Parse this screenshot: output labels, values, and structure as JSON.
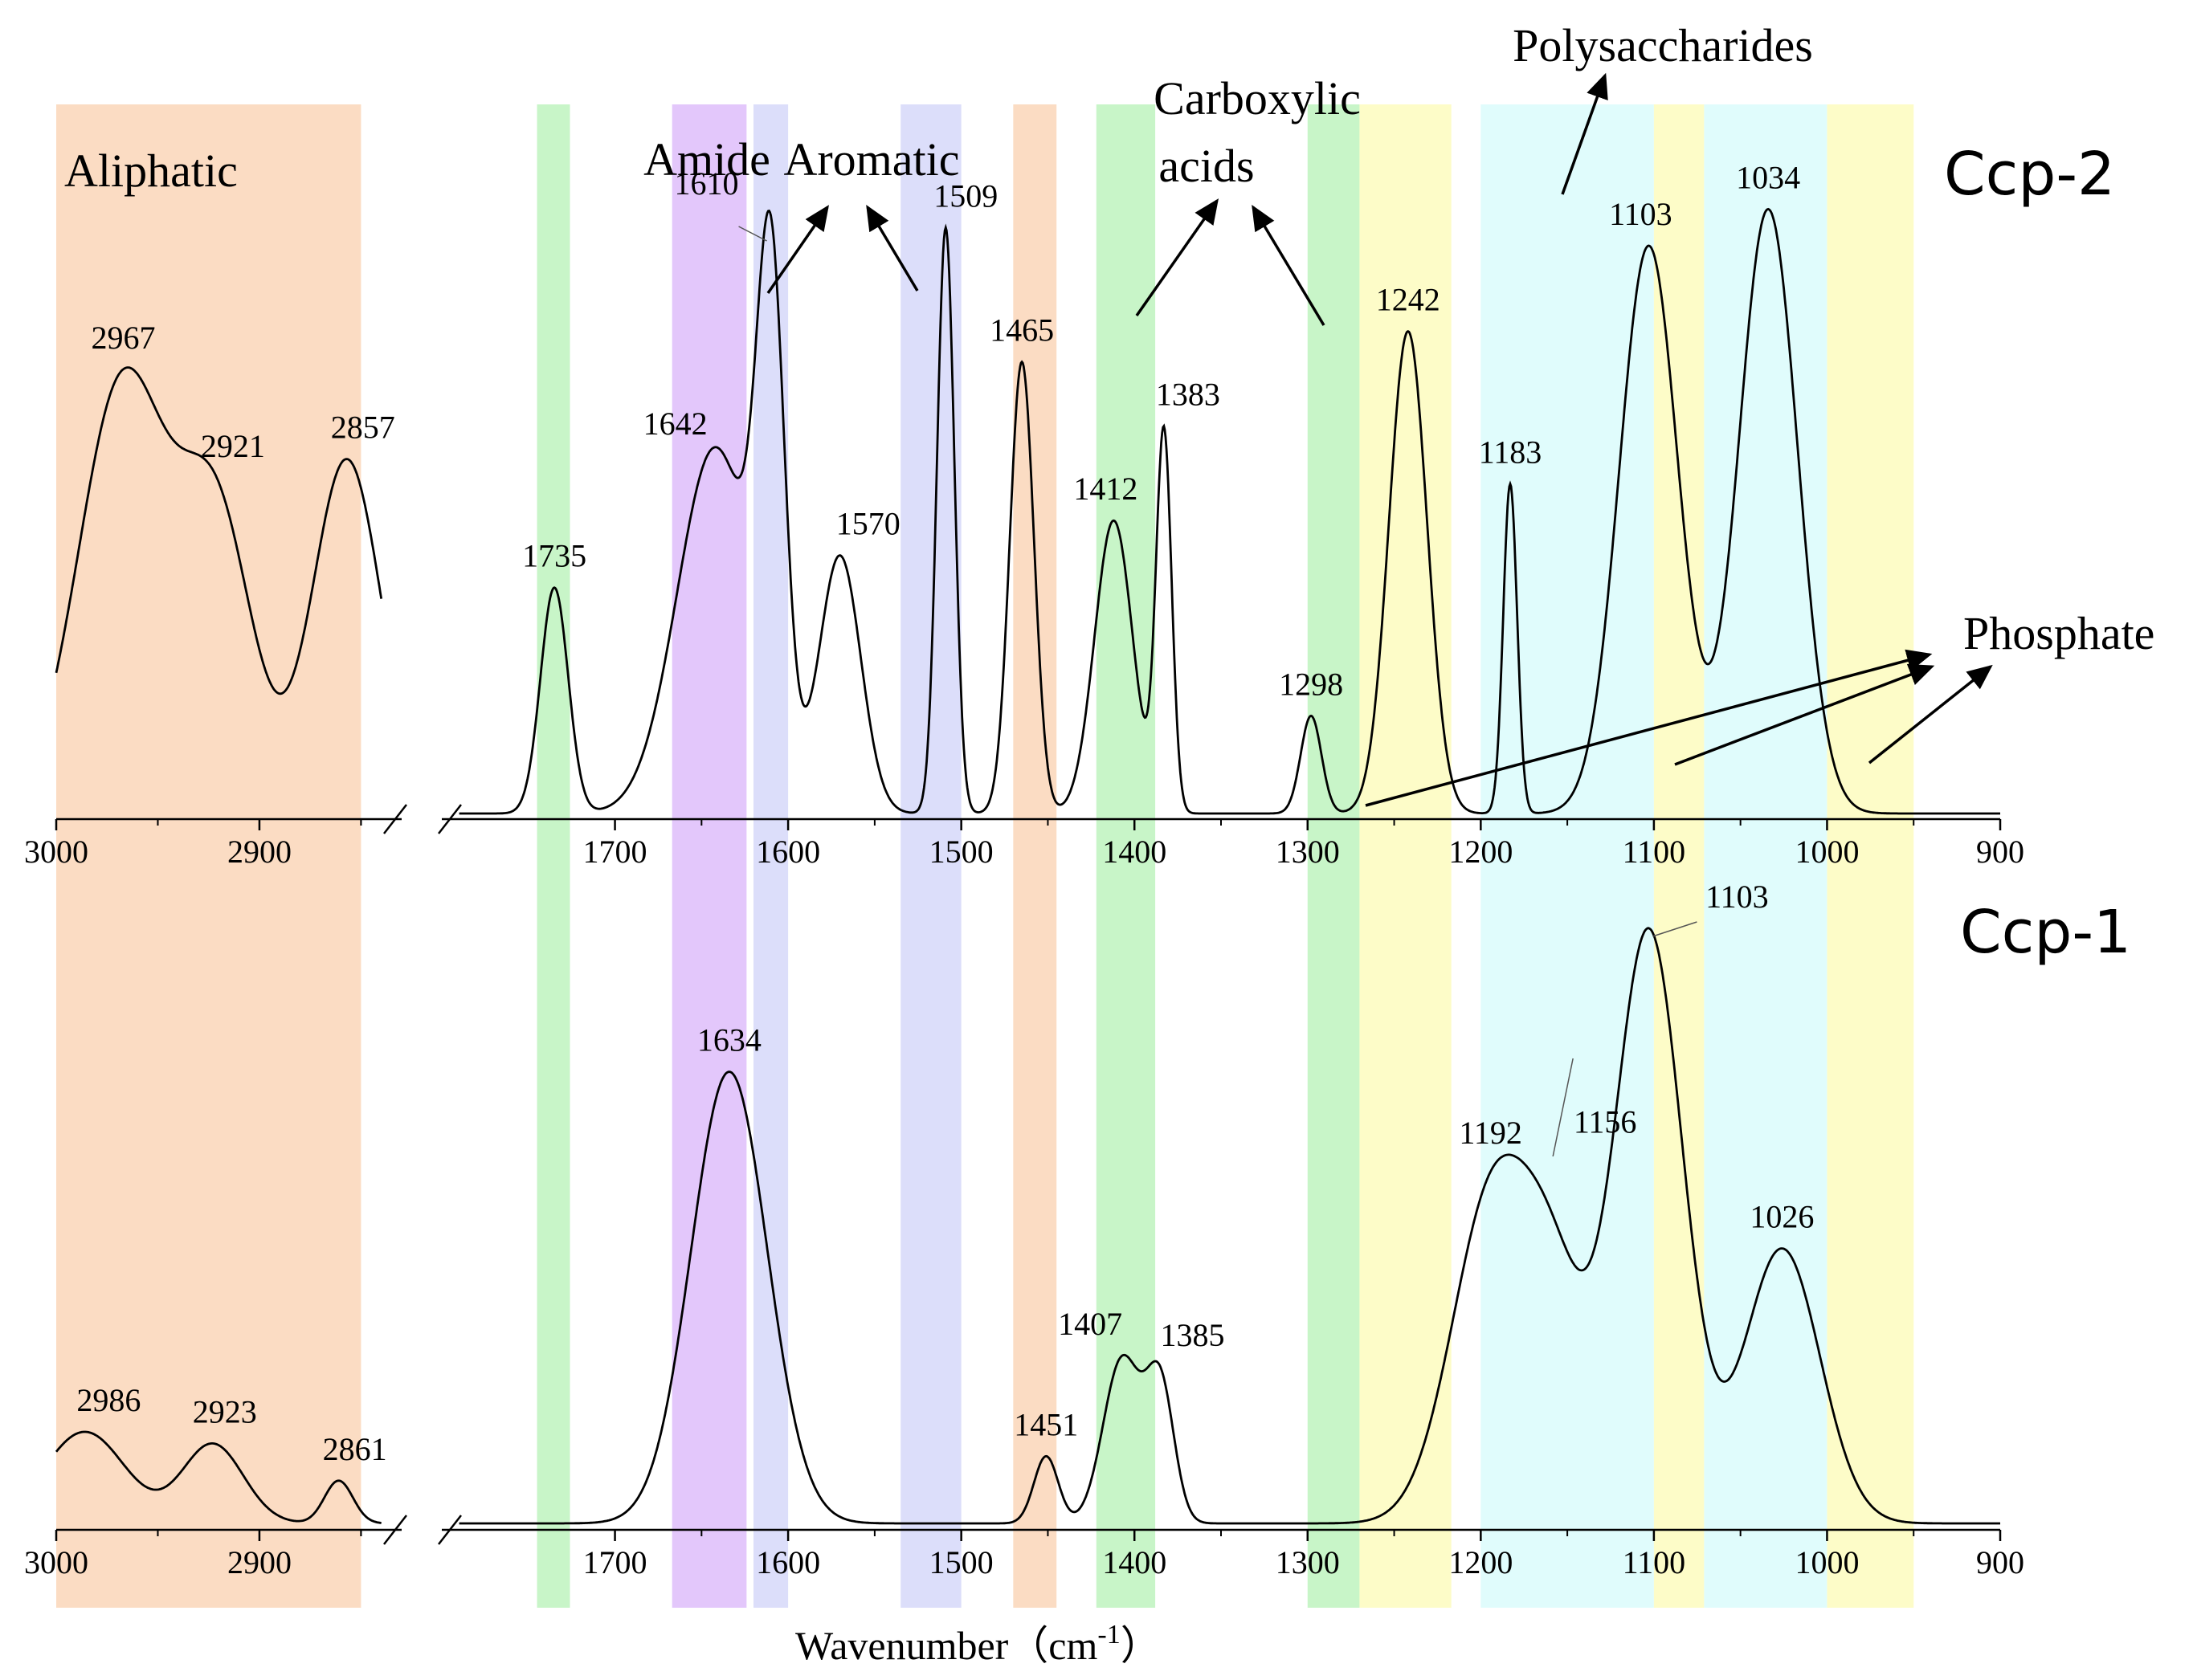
{
  "chart_data": {
    "type": "line",
    "title": "",
    "xlabel": "Wavenumber（cm",
    "xlabel_sup": "-1",
    "xlabel_close": "）",
    "ylabel": "",
    "xlim_left": [
      3000,
      2830
    ],
    "xlim_right": [
      1800,
      900
    ],
    "x_break": [
      2830,
      1800
    ],
    "ticks_left": [
      "3000",
      "2900"
    ],
    "tick_values_left": [
      3000,
      2900
    ],
    "ticks_right": [
      "1700",
      "1600",
      "1500",
      "1400",
      "1300",
      "1200",
      "1100",
      "1000",
      "900"
    ],
    "tick_values_right": [
      1700,
      1600,
      1500,
      1400,
      1300,
      1200,
      1100,
      1000,
      900
    ],
    "bands": [
      {
        "from": 3000,
        "to": 2850,
        "color": "#fbdcc3"
      },
      {
        "from": 1745,
        "to": 1726,
        "color": "#c8f5c8"
      },
      {
        "from": 1667,
        "to": 1624,
        "color": "#e3c7fb"
      },
      {
        "from": 1620,
        "to": 1600,
        "color": "#dcdefa"
      },
      {
        "from": 1535,
        "to": 1500,
        "color": "#dcdefa"
      },
      {
        "from": 1470,
        "to": 1445,
        "color": "#fbdcc3"
      },
      {
        "from": 1422,
        "to": 1388,
        "color": "#c8f5c8"
      },
      {
        "from": 1300,
        "to": 1270,
        "color": "#c8f5c8"
      },
      {
        "from": 1270,
        "to": 1217,
        "color": "#fdfcc8"
      },
      {
        "from": 1200,
        "to": 1100,
        "color": "#e0fcfc"
      },
      {
        "from": 1100,
        "to": 1071,
        "color": "#fdfcc8"
      },
      {
        "from": 1071,
        "to": 1000,
        "color": "#e0fcfc"
      },
      {
        "from": 1000,
        "to": 950,
        "color": "#fdfcc8"
      }
    ],
    "group_labels": [
      {
        "text": "Aliphatic"
      },
      {
        "text": "Amide"
      },
      {
        "text": "Aromatic"
      },
      {
        "text": "Carboxylic"
      },
      {
        "text": "acids"
      },
      {
        "text": "Polysaccharides"
      },
      {
        "text": "Phosphate"
      }
    ],
    "series": [
      {
        "name": "Ccp-2",
        "baseline": 0.05,
        "peaks": [
          {
            "x": 2967,
            "a": 0.71,
            "w": 22,
            "label": "2967"
          },
          {
            "x": 2921,
            "a": 0.47,
            "w": 18,
            "label": "2921"
          },
          {
            "x": 2857,
            "a": 0.58,
            "w": 17,
            "label": "2857"
          },
          {
            "x": 1735,
            "a": 0.37,
            "w": 8,
            "label": "1735"
          },
          {
            "x": 1642,
            "a": 0.6,
            "w": 22,
            "label": "1642"
          },
          {
            "x": 1610,
            "a": 0.77,
            "w": 8,
            "label": "1610"
          },
          {
            "x": 1570,
            "a": 0.42,
            "w": 12,
            "label": "1570"
          },
          {
            "x": 1509,
            "a": 0.96,
            "w": 5,
            "label": "1509"
          },
          {
            "x": 1465,
            "a": 0.74,
            "w": 7,
            "label": "1465"
          },
          {
            "x": 1412,
            "a": 0.48,
            "w": 11,
            "label": "1412"
          },
          {
            "x": 1383,
            "a": 0.62,
            "w": 4.5,
            "label": "1383"
          },
          {
            "x": 1298,
            "a": 0.16,
            "w": 6,
            "label": "1298"
          },
          {
            "x": 1242,
            "a": 0.79,
            "w": 11,
            "label": "1242"
          },
          {
            "x": 1183,
            "a": 0.54,
            "w": 4,
            "label": "1183"
          },
          {
            "x": 1103,
            "a": 0.93,
            "w": 17,
            "label": "1103"
          },
          {
            "x": 1034,
            "a": 0.99,
            "w": 17,
            "label": "1034"
          }
        ]
      },
      {
        "name": "Ccp-1",
        "baseline": 0.0,
        "peaks": [
          {
            "x": 2986,
            "a": 0.15,
            "w": 20,
            "label": "2986"
          },
          {
            "x": 2923,
            "a": 0.13,
            "w": 15,
            "label": "2923"
          },
          {
            "x": 2861,
            "a": 0.07,
            "w": 7,
            "label": "2861"
          },
          {
            "x": 1634,
            "a": 0.74,
            "w": 22,
            "label": "1634"
          },
          {
            "x": 1451,
            "a": 0.11,
            "w": 7,
            "label": "1451"
          },
          {
            "x": 1407,
            "a": 0.27,
            "w": 11,
            "label": "1407"
          },
          {
            "x": 1385,
            "a": 0.22,
            "w": 8,
            "label": "1385"
          },
          {
            "x": 1192,
            "a": 0.55,
            "w": 24,
            "label": "1192"
          },
          {
            "x": 1156,
            "a": 0.28,
            "w": 18,
            "label": "1156"
          },
          {
            "x": 1103,
            "a": 0.97,
            "w": 20,
            "label": "1103"
          },
          {
            "x": 1026,
            "a": 0.45,
            "w": 22,
            "label": "1026"
          }
        ]
      }
    ]
  }
}
